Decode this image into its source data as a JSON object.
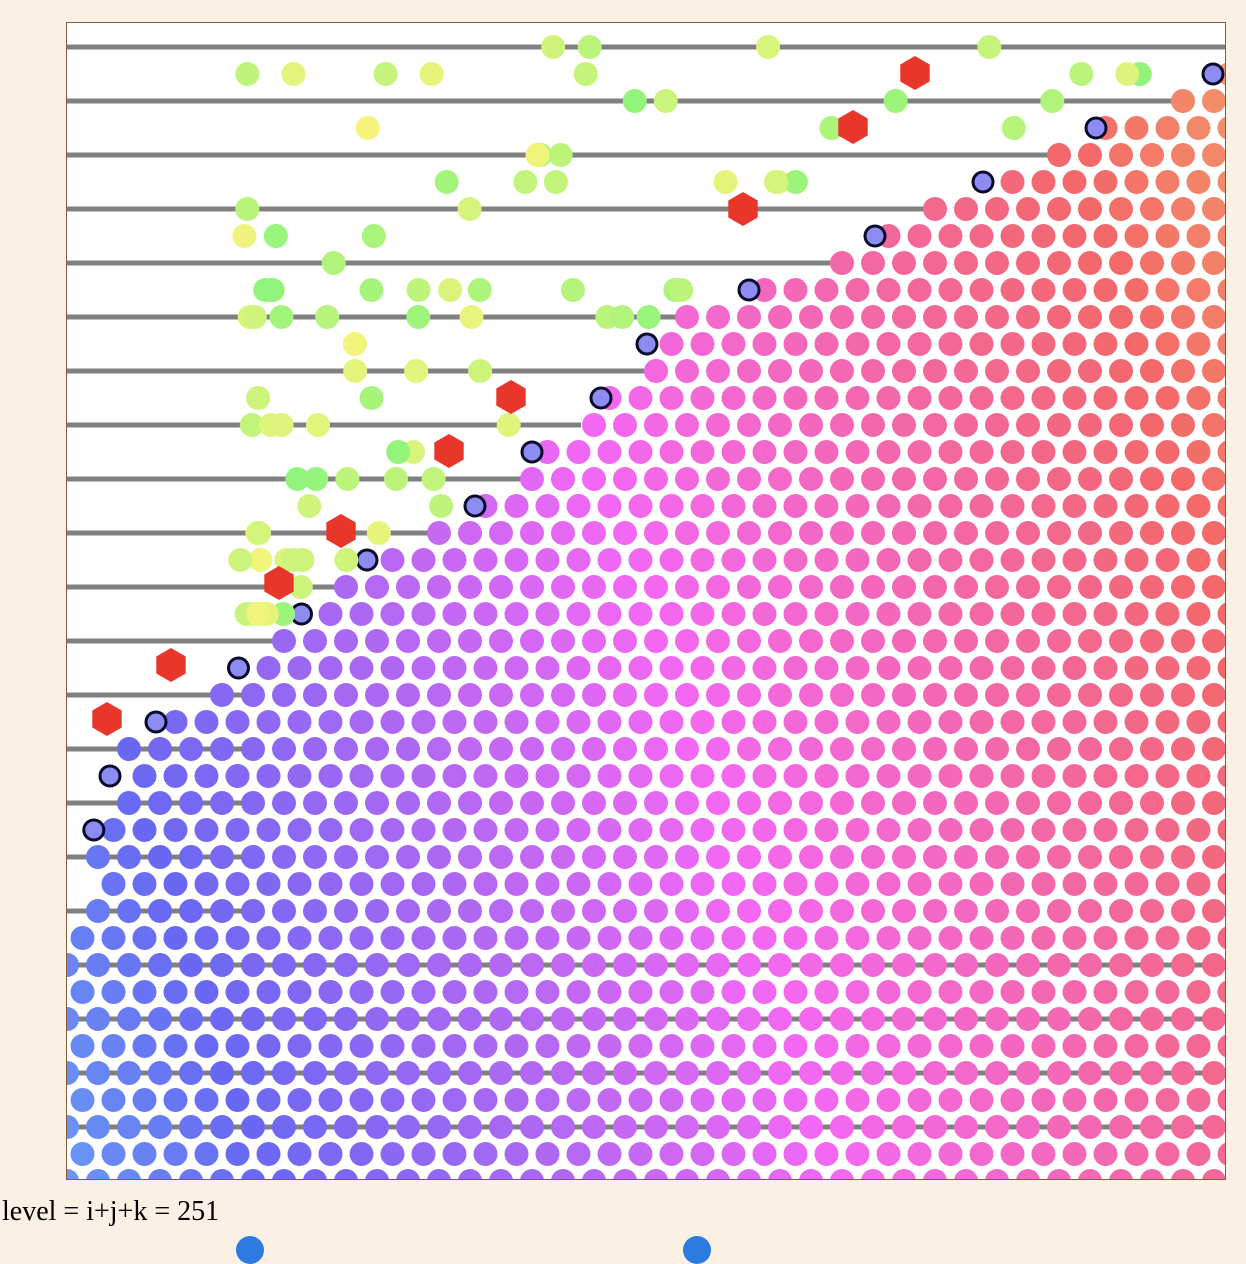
{
  "readout": {
    "label": "level = i+j+k = 251",
    "level": 251
  },
  "colors": {
    "page_background": "#faf0e4",
    "canvas_background": "#ffffff",
    "canvas_border": "#8a5a3a",
    "line": "#808080",
    "marker_red": "#e8362a",
    "ring_outline": "#0a0a2a",
    "ring_fill": "#8c8cf2",
    "slider_thumb": "#2d7be0"
  },
  "sliders": [
    {
      "name": "slider-1"
    },
    {
      "name": "slider-2"
    }
  ]
}
